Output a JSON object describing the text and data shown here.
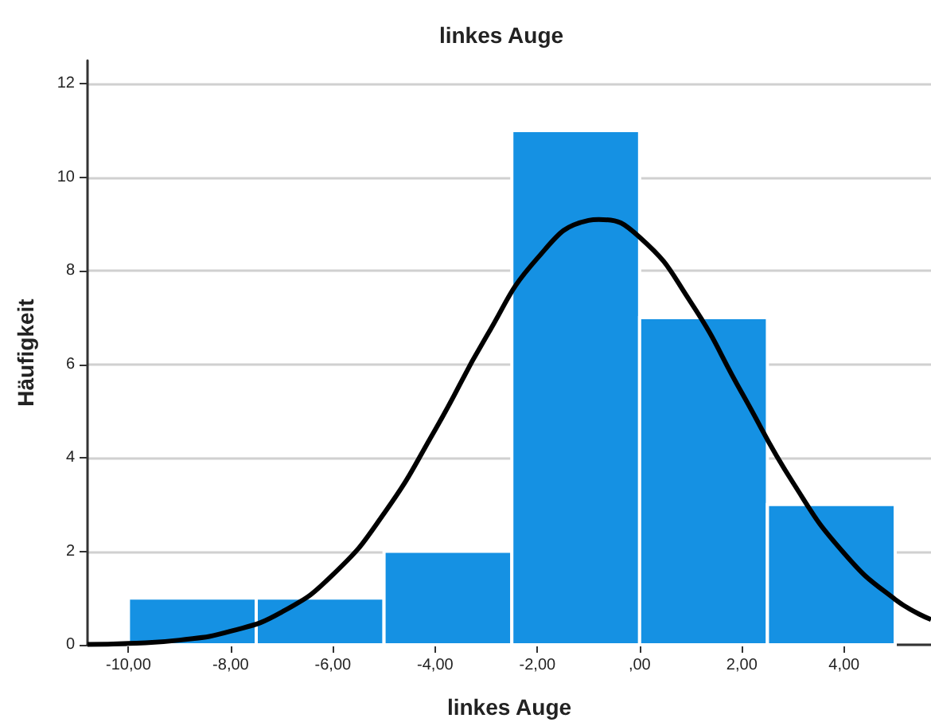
{
  "chart_data": {
    "type": "histogram",
    "title": "linkes Auge",
    "xlabel": "linkes Auge",
    "ylabel": "Häufigkeit",
    "xlim": [
      -10.8,
      5.7
    ],
    "ylim": [
      0,
      12.5
    ],
    "xticks": [
      {
        "value": -10,
        "label": "-10,00"
      },
      {
        "value": -8,
        "label": "-8,00"
      },
      {
        "value": -6,
        "label": "-6,00"
      },
      {
        "value": -4,
        "label": "-4,00"
      },
      {
        "value": -2,
        "label": "-2,00"
      },
      {
        "value": 0,
        "label": ",00"
      },
      {
        "value": 2,
        "label": "2,00"
      },
      {
        "value": 4,
        "label": "4,00"
      }
    ],
    "yticks": [
      0,
      2,
      4,
      6,
      8,
      10,
      12
    ],
    "grid": "y",
    "series": [
      {
        "color": "#1591e3",
        "bins": [
          -10,
          -7.5,
          -5,
          -2.5,
          0,
          2.5,
          5
        ],
        "values": [
          1,
          1,
          2,
          11,
          7,
          3
        ]
      },
      {
        "type": "line",
        "color": "#000000",
        "x": [
          -10.8,
          -10,
          -9,
          -8,
          -7,
          -6,
          -5,
          -4,
          -3,
          -2,
          -1,
          -0.8,
          0,
          1,
          2,
          3,
          4,
          5,
          5.7
        ],
        "values": [
          0.01,
          0.03,
          0.1,
          0.29,
          0.7,
          1.5,
          2.81,
          4.6,
          6.59,
          8.27,
          9.08,
          9.1,
          8.72,
          7.33,
          5.39,
          3.47,
          1.96,
          0.97,
          0.54
        ]
      }
    ]
  }
}
